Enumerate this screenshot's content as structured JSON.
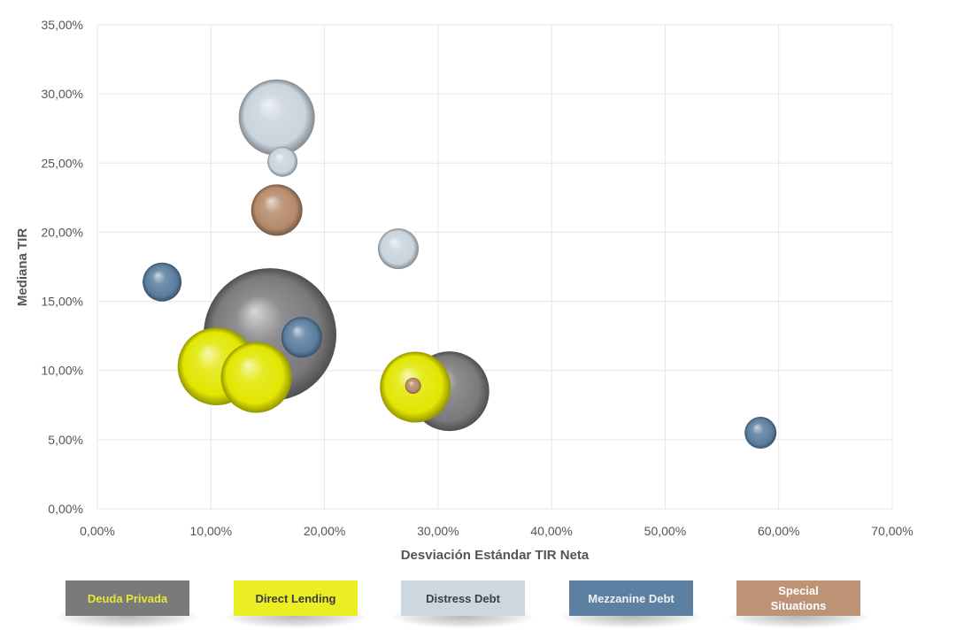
{
  "chart_data": {
    "type": "bubble",
    "xlabel": "Desviación Estándar TIR Neta",
    "ylabel": "Mediana TIR",
    "xlim": [
      0,
      70
    ],
    "ylim": [
      0,
      35
    ],
    "x_ticks": [
      "0,00%",
      "10,00%",
      "20,00%",
      "30,00%",
      "40,00%",
      "50,00%",
      "60,00%",
      "70,00%"
    ],
    "y_ticks": [
      "0,00%",
      "5,00%",
      "10,00%",
      "15,00%",
      "20,00%",
      "25,00%",
      "30,00%",
      "35,00%"
    ],
    "grid": true,
    "legend_position": "bottom",
    "series": [
      {
        "name": "Deuda Privada",
        "color": "#7a7a7c",
        "points": [
          {
            "x": 15.2,
            "y": 12.6,
            "size": 75
          },
          {
            "x": 31.0,
            "y": 8.5,
            "size": 45
          }
        ]
      },
      {
        "name": "Direct Lending",
        "color": "#e2e600",
        "points": [
          {
            "x": 10.5,
            "y": 10.3,
            "size": 44
          },
          {
            "x": 14.0,
            "y": 9.5,
            "size": 40
          },
          {
            "x": 28.0,
            "y": 8.8,
            "size": 40
          }
        ]
      },
      {
        "name": "Distress Debt",
        "color": "#c9d4dd",
        "points": [
          {
            "x": 15.8,
            "y": 28.3,
            "size": 43
          },
          {
            "x": 16.3,
            "y": 25.1,
            "size": 17
          },
          {
            "x": 26.5,
            "y": 18.8,
            "size": 23
          }
        ]
      },
      {
        "name": "Mezzanine Debt",
        "color": "#5a7d9e",
        "points": [
          {
            "x": 5.7,
            "y": 16.4,
            "size": 22
          },
          {
            "x": 18.0,
            "y": 12.4,
            "size": 23
          },
          {
            "x": 58.4,
            "y": 5.5,
            "size": 18
          }
        ]
      },
      {
        "name": "Special Situations",
        "color": "#b58a6a",
        "points": [
          {
            "x": 15.8,
            "y": 21.6,
            "size": 29
          },
          {
            "x": 27.8,
            "y": 8.9,
            "size": 9
          }
        ]
      }
    ]
  },
  "legend": [
    {
      "label": "Deuda Privada",
      "bg": "#7a7a7c",
      "fg": "#e8e832"
    },
    {
      "label": "Direct Lending",
      "bg": "#eaee22",
      "fg": "#3b3b3b"
    },
    {
      "label": "Distress Debt",
      "bg": "#ccd7df",
      "fg": "#3f3f3f"
    },
    {
      "label": "Mezzanine Debt",
      "bg": "#5c80a2",
      "fg": "#f0f0f0"
    },
    {
      "label": "Special Situations",
      "bg": "#bd9376",
      "fg": "#ffffff"
    }
  ]
}
